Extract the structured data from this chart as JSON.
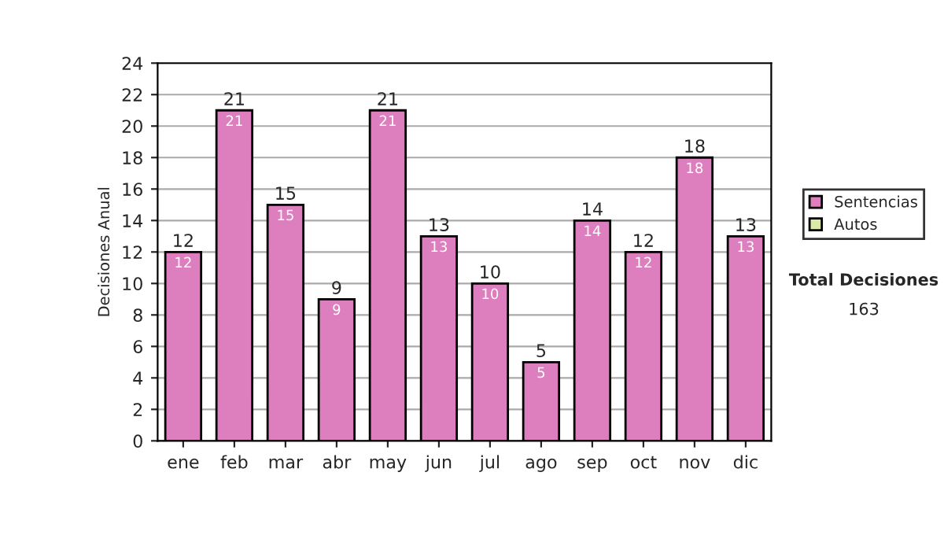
{
  "chart_data": {
    "type": "bar",
    "stacked": true,
    "ylabel": "Decisiones Anual",
    "categories": [
      "ene",
      "feb",
      "mar",
      "abr",
      "may",
      "jun",
      "jul",
      "ago",
      "sep",
      "oct",
      "nov",
      "dic"
    ],
    "series": [
      {
        "name": "Sentencias",
        "color": "#dd7fbf",
        "values": [
          12,
          21,
          15,
          9,
          21,
          13,
          10,
          5,
          14,
          12,
          18,
          13
        ],
        "value_labels": [
          "12",
          "21",
          "15",
          "9",
          "21",
          "13",
          "10",
          "5",
          "14",
          "12",
          "18",
          "13"
        ]
      },
      {
        "name": "Autos",
        "color": "#d9eba6",
        "values": [
          0,
          0,
          0,
          0,
          0,
          0,
          0,
          0,
          0,
          0,
          0,
          0
        ]
      }
    ],
    "totals": [
      "12",
      "21",
      "15",
      "9",
      "21",
      "13",
      "10",
      "5",
      "14",
      "12",
      "18",
      "13"
    ],
    "ylim": [
      0,
      24
    ],
    "yticks": [
      0,
      2,
      4,
      6,
      8,
      10,
      12,
      14,
      16,
      18,
      20,
      22,
      24
    ],
    "grid": "y",
    "legend": "right",
    "annotations": [
      "Total Decisiones",
      "163"
    ]
  }
}
